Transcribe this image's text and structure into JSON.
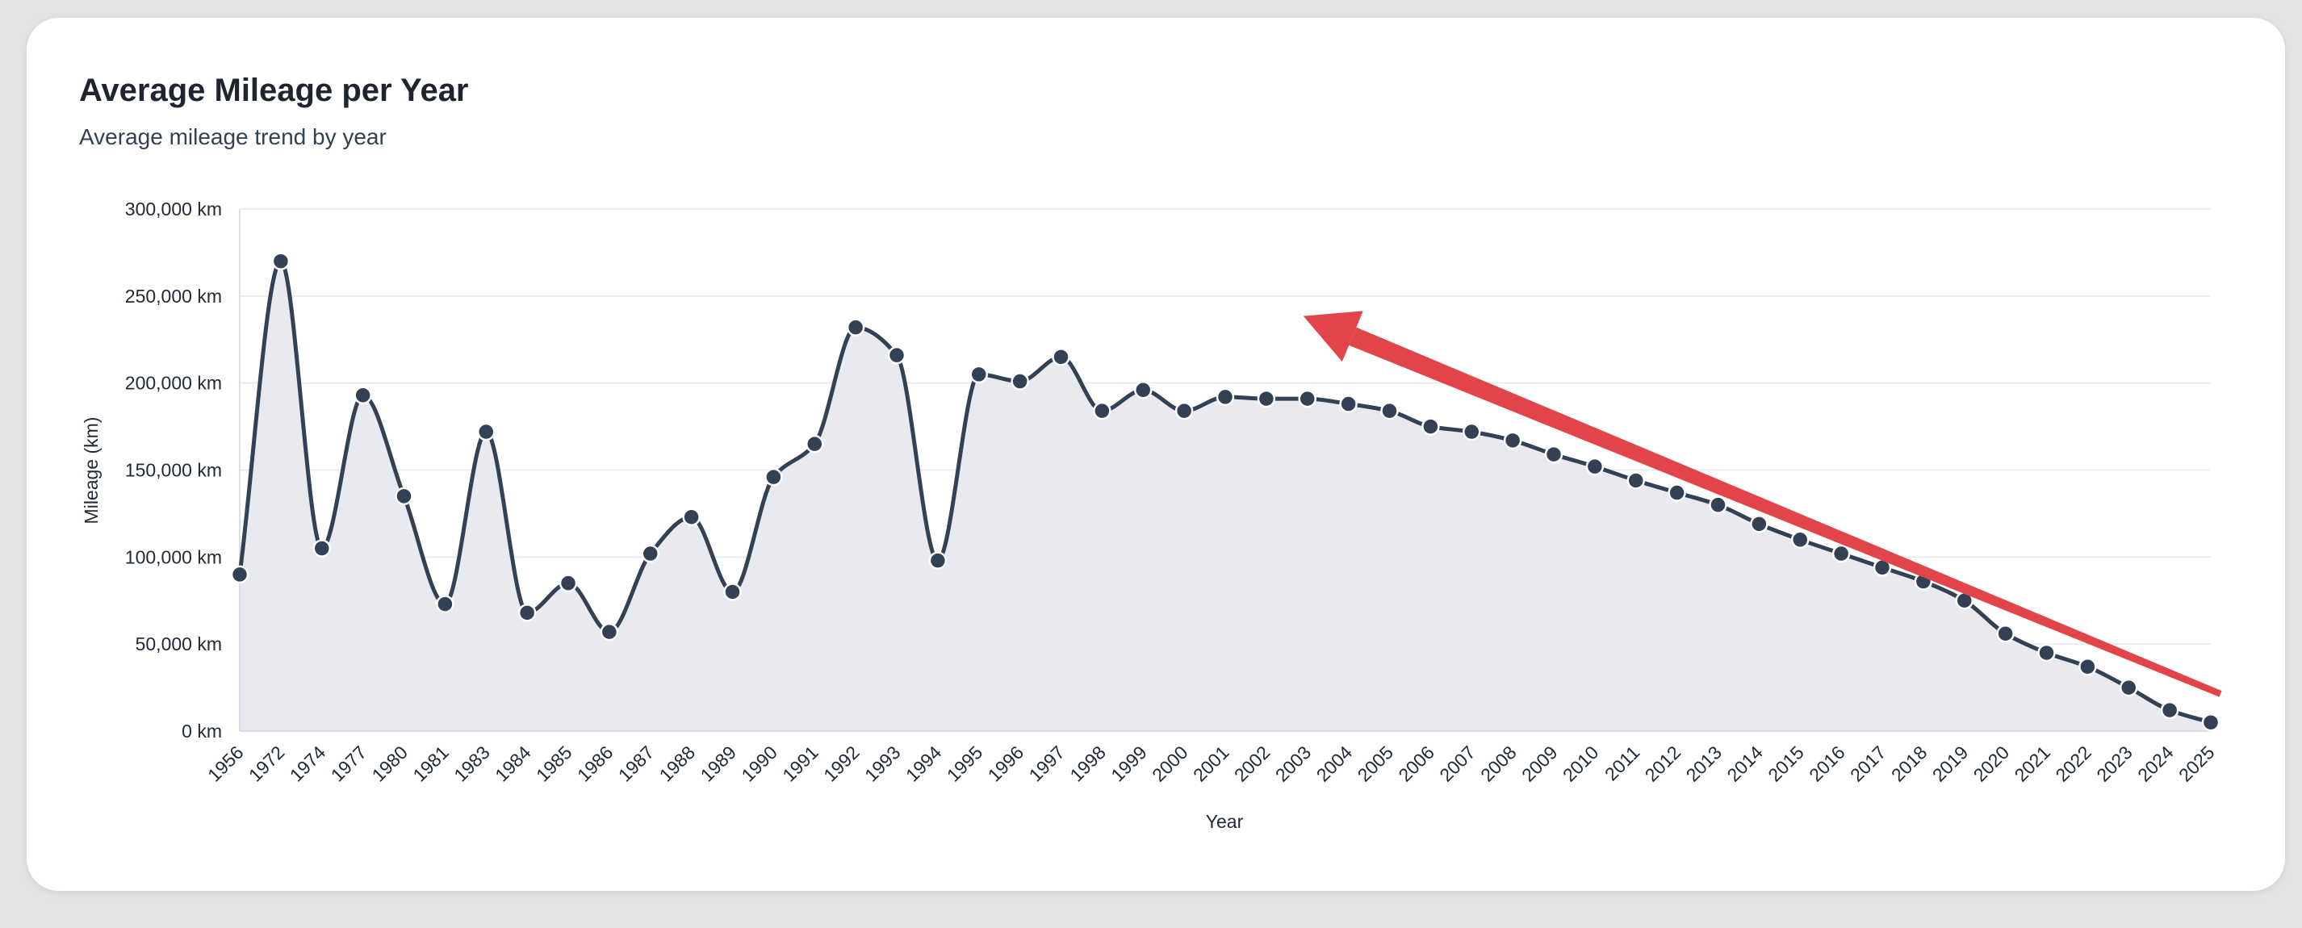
{
  "card": {
    "title": "Average Mileage per Year",
    "subtitle": "Average mileage trend by year"
  },
  "colors": {
    "line": "#334155",
    "area": "#e8eaef",
    "grid": "#e5e7eb",
    "arrow": "#e24549"
  },
  "chart_data": {
    "type": "area",
    "title": "Average Mileage per Year",
    "subtitle": "Average mileage trend by year",
    "xlabel": "Year",
    "ylabel": "Mileage (km)",
    "ylim": [
      0,
      300000
    ],
    "yticks": [
      0,
      50000,
      100000,
      150000,
      200000,
      250000,
      300000
    ],
    "ytick_labels": [
      "0 km",
      "50,000 km",
      "100,000 km",
      "150,000 km",
      "200,000 km",
      "250,000 km",
      "300,000 km"
    ],
    "grid": true,
    "categories": [
      "1956",
      "1972",
      "1974",
      "1977",
      "1980",
      "1981",
      "1983",
      "1984",
      "1985",
      "1986",
      "1987",
      "1988",
      "1989",
      "1990",
      "1991",
      "1992",
      "1993",
      "1994",
      "1995",
      "1996",
      "1997",
      "1998",
      "1999",
      "2000",
      "2001",
      "2002",
      "2003",
      "2004",
      "2005",
      "2006",
      "2007",
      "2008",
      "2009",
      "2010",
      "2011",
      "2012",
      "2013",
      "2014",
      "2015",
      "2016",
      "2017",
      "2018",
      "2019",
      "2020",
      "2021",
      "2022",
      "2023",
      "2024",
      "2025"
    ],
    "series": [
      {
        "values": [
          90000,
          270000,
          105000,
          193000,
          135000,
          73000,
          172000,
          68000,
          85000,
          57000,
          102000,
          123000,
          80000,
          146000,
          165000,
          232000,
          216000,
          98000,
          205000,
          201000,
          215000,
          184000,
          196000,
          184000,
          192000,
          191000,
          191000,
          188000,
          184000,
          175000,
          172000,
          167000,
          159000,
          152000,
          144000,
          137000,
          130000,
          119000,
          110000,
          102000,
          94000,
          86000,
          75000,
          56000,
          45000,
          37000,
          25000,
          12000,
          5000
        ]
      }
    ],
    "annotation": {
      "type": "arrow",
      "color": "#e24549",
      "from": {
        "x": "2025",
        "y": 20000
      },
      "to": {
        "x": "2003",
        "y": 245000
      }
    }
  }
}
